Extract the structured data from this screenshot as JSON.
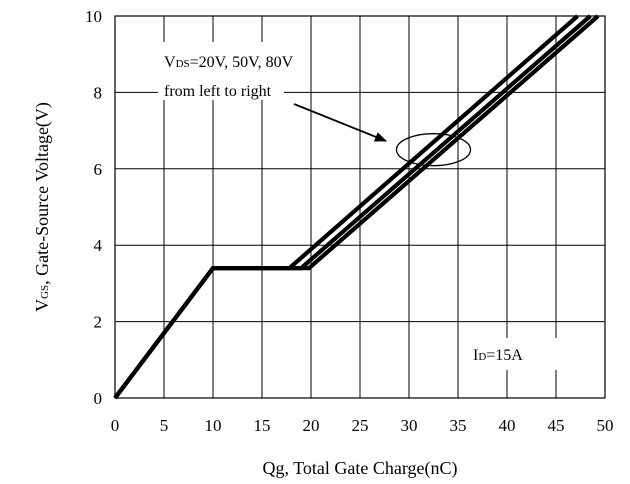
{
  "chart_data": {
    "type": "line",
    "title": "",
    "xlabel": "Qg, Total Gate Charge(nC)",
    "ylabel": {
      "main": "V",
      "sub": "GS",
      "rest": ", Gate-Source Voltage(V)"
    },
    "xlim": [
      0,
      50
    ],
    "ylim": [
      0,
      10
    ],
    "xticks": [
      0,
      5,
      10,
      15,
      20,
      25,
      30,
      35,
      40,
      45,
      50
    ],
    "yticks": [
      0,
      2,
      4,
      6,
      8,
      10
    ],
    "grid": true,
    "series": [
      {
        "x": [
          0,
          10,
          17.8,
          47.2
        ],
        "y": [
          0,
          3.4,
          3.4,
          10
        ]
      },
      {
        "x": [
          0,
          10,
          19.0,
          48.5
        ],
        "y": [
          0,
          3.4,
          3.4,
          10
        ]
      },
      {
        "x": [
          0,
          10,
          19.8,
          49.3
        ],
        "y": [
          0,
          3.4,
          3.4,
          10
        ]
      }
    ],
    "annotations": {
      "vds": {
        "main": "V",
        "sub": "DS",
        "rest": "=20V, 50V, 80V"
      },
      "order": "from left to right",
      "id": {
        "main": "I",
        "sub": "D",
        "rest": "=15A"
      },
      "ellipse_center": [
        32.5,
        6.5
      ]
    }
  }
}
